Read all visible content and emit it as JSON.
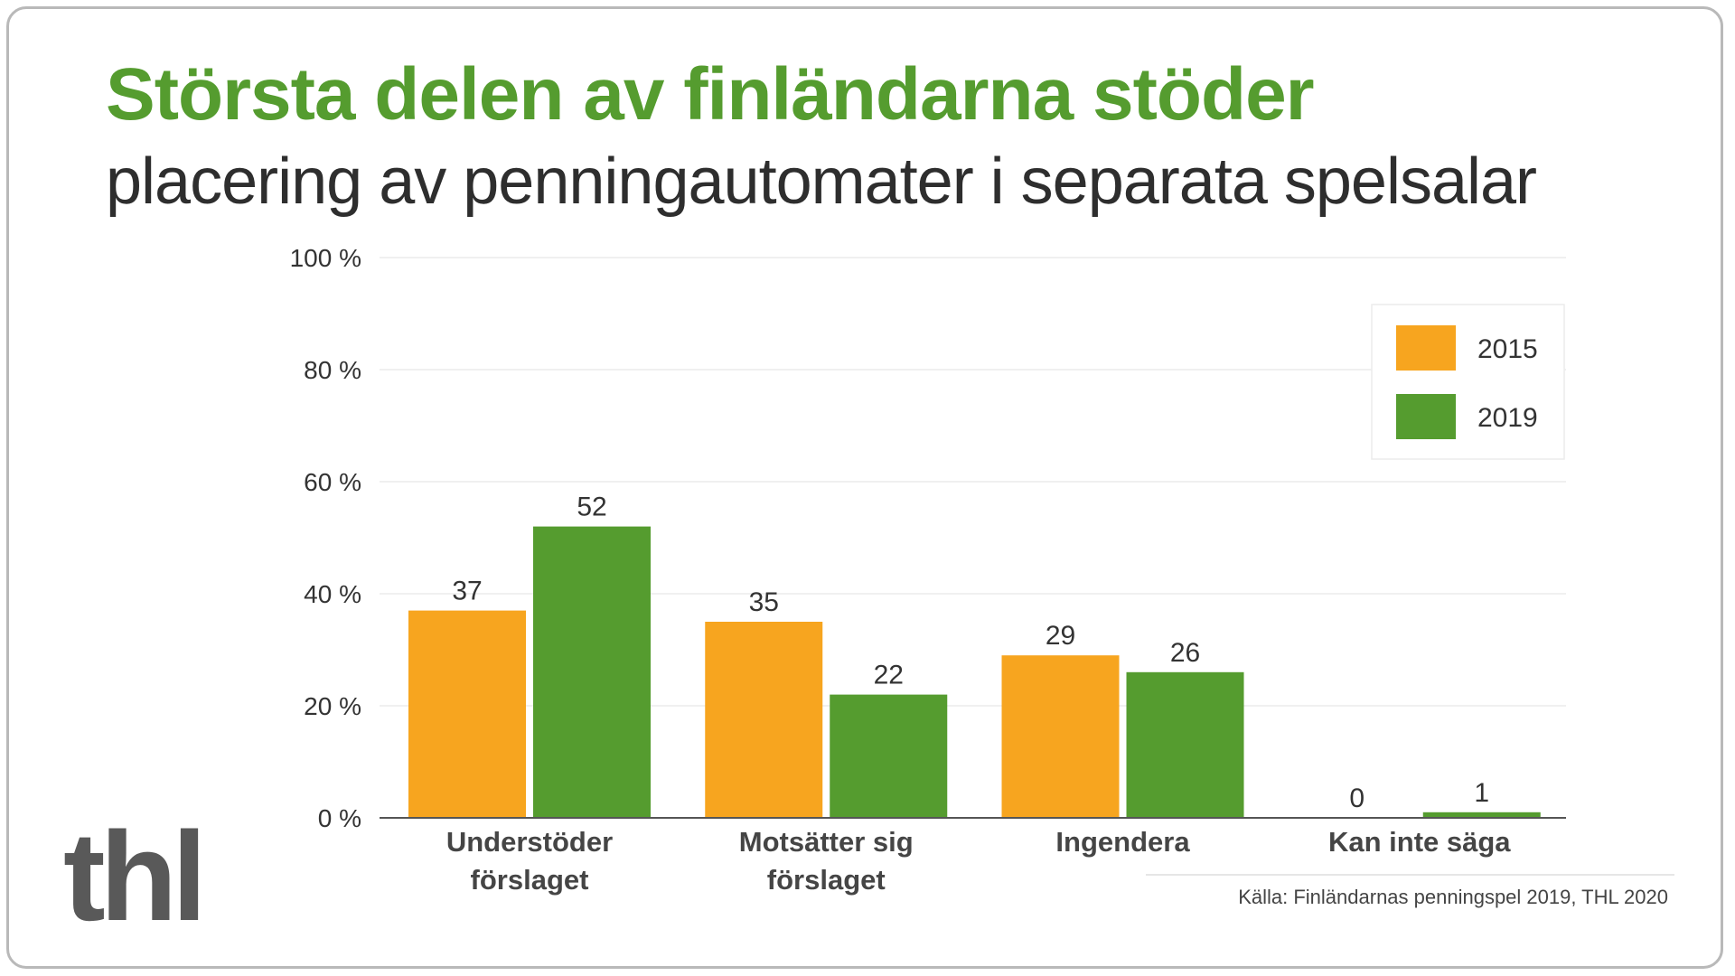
{
  "title": "Största delen av finländarna stöder",
  "subtitle": "placering av penningautomater i separata spelsalar",
  "logo_text": "thl",
  "source": "Källa: Finländarnas penningspel 2019, THL 2020",
  "colors": {
    "series_2015": "#f7a51f",
    "series_2019": "#559c2f",
    "title": "#559c2f"
  },
  "chart_data": {
    "type": "bar",
    "categories": [
      [
        "Understöder",
        "förslaget"
      ],
      [
        "Motsätter sig",
        "förslaget"
      ],
      [
        "Ingendera"
      ],
      [
        "Kan inte säga"
      ]
    ],
    "series": [
      {
        "name": "2015",
        "values": [
          37,
          35,
          29,
          0
        ]
      },
      {
        "name": "2019",
        "values": [
          52,
          22,
          26,
          1
        ]
      }
    ],
    "ylim": [
      0,
      100
    ],
    "yticks": [
      0,
      20,
      40,
      60,
      80,
      100
    ],
    "ytick_labels": [
      "0 %",
      "20 %",
      "40 %",
      "60 %",
      "80 %",
      "100 %"
    ],
    "grid": true,
    "legend_position": "top-right",
    "data_labels": true
  }
}
